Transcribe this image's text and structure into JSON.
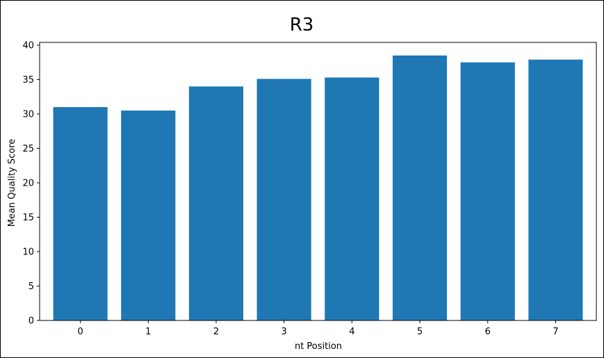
{
  "chart_data": {
    "type": "bar",
    "title": "R3",
    "xlabel": "nt Position",
    "ylabel": "Mean Quality Score",
    "categories": [
      "0",
      "1",
      "2",
      "3",
      "4",
      "5",
      "6",
      "7"
    ],
    "values": [
      31.0,
      30.5,
      34.0,
      35.1,
      35.3,
      38.5,
      37.5,
      37.9
    ],
    "ylim": [
      0,
      40.4
    ],
    "yticks": [
      "0",
      "5",
      "10",
      "15",
      "20",
      "25",
      "30",
      "35",
      "40"
    ],
    "bar_color": "#1f77b4",
    "grid": false,
    "legend": "none"
  }
}
